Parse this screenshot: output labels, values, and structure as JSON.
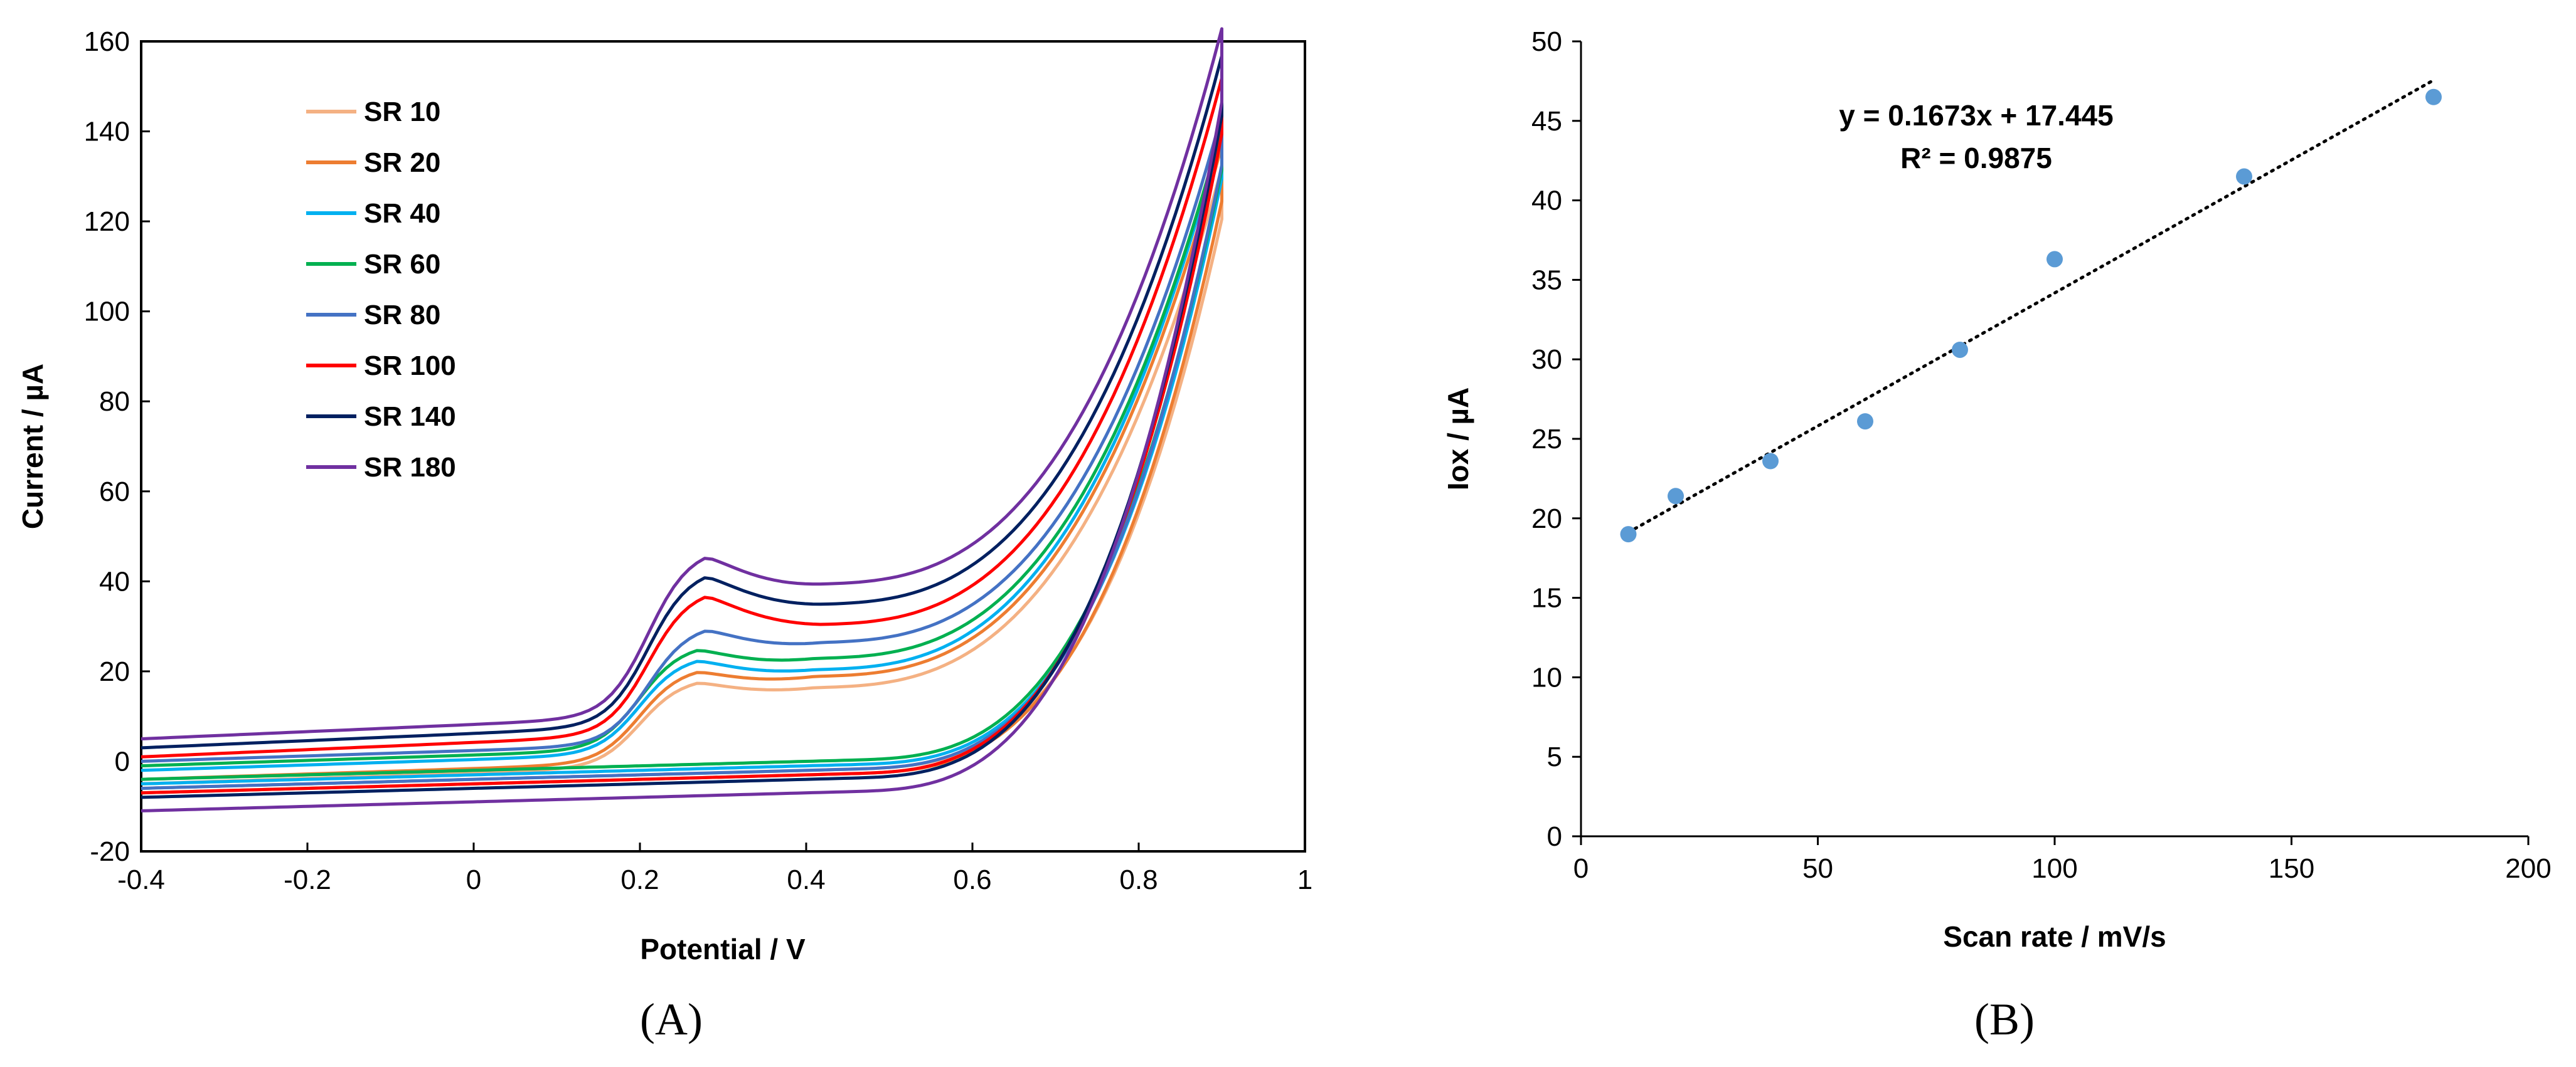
{
  "chart_data": [
    {
      "type": "line",
      "panel_label": "A",
      "xlabel": "Potential / V",
      "ylabel": "Current / µA",
      "xlim": [
        -0.4,
        1.0
      ],
      "ylim": [
        -20,
        160
      ],
      "xticks": [
        -0.4,
        -0.2,
        0,
        0.2,
        0.4,
        0.6,
        0.8,
        1
      ],
      "xtick_labels": [
        "-0.4",
        "-0.2",
        "0",
        "0.2",
        "0.4",
        "0.6",
        "0.8",
        "1"
      ],
      "yticks": [
        -20,
        0,
        20,
        40,
        60,
        80,
        100,
        120,
        140,
        160
      ],
      "ytick_labels": [
        "-20",
        "0",
        "20",
        "40",
        "60",
        "80",
        "100",
        "120",
        "140",
        "160"
      ],
      "grid": false,
      "legend_position": "top-left",
      "series": [
        {
          "name": "SR 10",
          "color": "#f4b183",
          "peak_current": 18.5,
          "peak_potential": 0.27,
          "baseline_fwd": -5,
          "baseline_rev": -6,
          "valley": 15.5,
          "max_current": 128
        },
        {
          "name": "SR 20",
          "color": "#ed7d31",
          "peak_current": 21,
          "peak_potential": 0.27,
          "baseline_fwd": -4,
          "baseline_rev": -7,
          "valley": 18,
          "max_current": 133
        },
        {
          "name": "SR 40",
          "color": "#00b0f0",
          "peak_current": 23.5,
          "peak_potential": 0.27,
          "baseline_fwd": -2,
          "baseline_rev": -5,
          "valley": 19.5,
          "max_current": 136
        },
        {
          "name": "SR 60",
          "color": "#00b050",
          "peak_current": 26,
          "peak_potential": 0.27,
          "baseline_fwd": -1,
          "baseline_rev": -4,
          "valley": 22,
          "max_current": 137
        },
        {
          "name": "SR 80",
          "color": "#4472c4",
          "peak_current": 30.5,
          "peak_potential": 0.28,
          "baseline_fwd": 0,
          "baseline_rev": -6,
          "valley": 25.5,
          "max_current": 140
        },
        {
          "name": "SR 100",
          "color": "#ff0000",
          "peak_current": 37,
          "peak_potential": 0.28,
          "baseline_fwd": 1,
          "baseline_rev": -7,
          "valley": 29.5,
          "max_current": 148
        },
        {
          "name": "SR 140",
          "color": "#002060",
          "peak_current": 41.5,
          "peak_potential": 0.28,
          "baseline_fwd": 3,
          "baseline_rev": -8,
          "valley": 34,
          "max_current": 153
        },
        {
          "name": "SR 180",
          "color": "#7030a0",
          "peak_current": 46,
          "peak_potential": 0.28,
          "baseline_fwd": 5,
          "baseline_rev": -11,
          "valley": 38.5,
          "max_current": 159
        }
      ]
    },
    {
      "type": "scatter",
      "panel_label": "B",
      "xlabel": "Scan rate / mV/s",
      "ylabel": "Iox / µA",
      "xlim": [
        0,
        200
      ],
      "ylim": [
        0,
        50
      ],
      "xticks": [
        0,
        50,
        100,
        150,
        200
      ],
      "xtick_labels": [
        "0",
        "50",
        "100",
        "150",
        "200"
      ],
      "yticks": [
        0,
        5,
        10,
        15,
        20,
        25,
        30,
        35,
        40,
        45,
        50
      ],
      "ytick_labels": [
        "0",
        "5",
        "10",
        "15",
        "20",
        "25",
        "30",
        "35",
        "40",
        "45",
        "50"
      ],
      "grid": false,
      "marker_color": "#5b9bd5",
      "points": {
        "x": [
          10,
          20,
          40,
          60,
          80,
          100,
          140,
          180
        ],
        "y": [
          19,
          21.4,
          23.6,
          26.1,
          30.6,
          36.3,
          41.5,
          46.5
        ]
      },
      "trendline": {
        "slope": 0.1673,
        "intercept": 17.445,
        "x_range": [
          10,
          180
        ],
        "style": "dotted",
        "color": "#000000"
      },
      "equation": "y = 0.1673x + 17.445",
      "r_squared": "R² = 0.9875"
    }
  ],
  "captions": {
    "a": "(A)",
    "b": "(B)"
  }
}
